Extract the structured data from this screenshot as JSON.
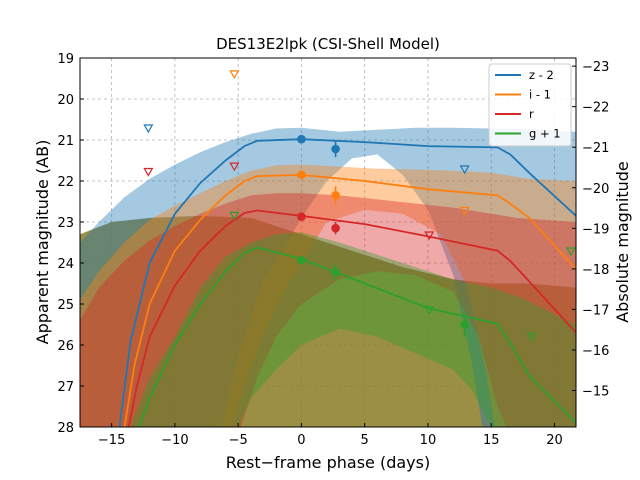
{
  "chart_data": {
    "type": "line",
    "title": "DES13E2lpk (CSI-Shell Model)",
    "xlabel": "Rest−frame phase (days)",
    "ylabel": "Apparent magnitude (AB)",
    "ylabel_right": "Absolute magnitude",
    "xlim": [
      -17.5,
      21.7
    ],
    "ylim": [
      28,
      19
    ],
    "ylim_right": [
      -14.1,
      -23.2
    ],
    "x_ticks": [
      -15,
      -10,
      -5,
      0,
      5,
      10,
      15,
      20
    ],
    "x_tick_labels": [
      "−15",
      "−10",
      "−5",
      "0",
      "5",
      "10",
      "15",
      "20"
    ],
    "y_ticks": [
      19,
      20,
      21,
      22,
      23,
      24,
      25,
      26,
      27,
      28
    ],
    "y_tick_labels": [
      "19",
      "20",
      "21",
      "22",
      "23",
      "24",
      "25",
      "26",
      "27",
      "28"
    ],
    "y_right_ticks": [
      -23,
      -22,
      -21,
      -20,
      -19,
      -18,
      -17,
      -16,
      -15
    ],
    "y_right_tick_labels": [
      "−23",
      "−22",
      "−21",
      "−20",
      "−19",
      "−18",
      "−17",
      "−16",
      "−15"
    ],
    "grid": true,
    "legend_position": "top-right",
    "series": [
      {
        "name": "z - 2",
        "color": "#1f77b4",
        "model": [
          [
            -14.8,
            29
          ],
          [
            -13.5,
            25.9
          ],
          [
            -12,
            24.0
          ],
          [
            -10,
            22.8
          ],
          [
            -8,
            22.05
          ],
          [
            -6,
            21.5
          ],
          [
            -4.5,
            21.15
          ],
          [
            -3.5,
            21.02
          ],
          [
            0,
            20.98
          ],
          [
            5,
            21.05
          ],
          [
            10,
            21.15
          ],
          [
            15.5,
            21.18
          ],
          [
            16.5,
            21.35
          ],
          [
            18,
            21.8
          ],
          [
            21.7,
            22.85
          ]
        ],
        "band_upper": [
          [
            -17.5,
            23.5
          ],
          [
            -16,
            23.0
          ],
          [
            -14,
            22.4
          ],
          [
            -12,
            21.95
          ],
          [
            -10,
            21.6
          ],
          [
            -8,
            21.3
          ],
          [
            -6,
            21.05
          ],
          [
            -4,
            20.85
          ],
          [
            -2,
            20.72
          ],
          [
            0,
            20.7
          ],
          [
            3,
            20.8
          ],
          [
            6,
            20.75
          ],
          [
            9,
            20.7
          ],
          [
            12,
            20.7
          ],
          [
            15,
            20.72
          ],
          [
            17,
            20.72
          ],
          [
            21.7,
            20.8
          ]
        ],
        "band_lower": [
          [
            -17.5,
            28
          ],
          [
            -6.3,
            28
          ],
          [
            -5,
            26.3
          ],
          [
            -3,
            24.4
          ],
          [
            -1.5,
            23.7
          ],
          [
            0,
            22.9
          ],
          [
            2,
            22.0
          ],
          [
            4,
            21.45
          ],
          [
            6,
            21.35
          ],
          [
            8,
            21.85
          ],
          [
            10,
            22.7
          ],
          [
            12,
            24.3
          ],
          [
            13.5,
            26.5
          ],
          [
            14.3,
            28
          ],
          [
            21.7,
            28
          ]
        ],
        "points": [
          {
            "x": 0,
            "y": 20.98,
            "err": 0.08
          },
          {
            "x": 2.7,
            "y": 21.22,
            "err": 0.2
          }
        ],
        "upper_limits": [
          {
            "x": -12.1,
            "y": 20.72
          },
          {
            "x": 12.9,
            "y": 21.72
          }
        ]
      },
      {
        "name": "i - 1",
        "color": "#ff7f0e",
        "model": [
          [
            -14.5,
            29
          ],
          [
            -13.2,
            26.5
          ],
          [
            -12,
            25.0
          ],
          [
            -10,
            23.7
          ],
          [
            -8,
            22.95
          ],
          [
            -6,
            22.35
          ],
          [
            -4.5,
            22.0
          ],
          [
            -3.5,
            21.88
          ],
          [
            0,
            21.85
          ],
          [
            5,
            22.0
          ],
          [
            10,
            22.2
          ],
          [
            15.5,
            22.35
          ],
          [
            16.5,
            22.55
          ],
          [
            18,
            22.9
          ],
          [
            21.7,
            24.15
          ]
        ],
        "band_upper": [
          [
            -17.5,
            24.9
          ],
          [
            -16,
            24.2
          ],
          [
            -14,
            23.5
          ],
          [
            -12,
            22.95
          ],
          [
            -10,
            22.6
          ],
          [
            -8,
            22.3
          ],
          [
            -6,
            22.0
          ],
          [
            -4,
            21.75
          ],
          [
            -2,
            21.62
          ],
          [
            0,
            21.6
          ],
          [
            3,
            21.65
          ],
          [
            6,
            21.7
          ],
          [
            9,
            21.72
          ],
          [
            12,
            21.75
          ],
          [
            15,
            21.8
          ],
          [
            18,
            21.95
          ],
          [
            21.7,
            22.0
          ]
        ],
        "band_lower": [
          [
            -17.5,
            28
          ],
          [
            -5.5,
            28
          ],
          [
            -4,
            26.5
          ],
          [
            -2,
            25.0
          ],
          [
            0,
            24.0
          ],
          [
            2,
            23.0
          ],
          [
            5,
            22.7
          ],
          [
            8,
            22.8
          ],
          [
            11,
            23.3
          ],
          [
            13,
            24.5
          ],
          [
            14.5,
            26.5
          ],
          [
            15.3,
            28
          ],
          [
            21.7,
            28
          ]
        ],
        "points": [
          {
            "x": 0,
            "y": 21.85,
            "err": 0.08
          },
          {
            "x": 2.7,
            "y": 22.35,
            "err": 0.22
          }
        ],
        "upper_limits": [
          {
            "x": -5.3,
            "y": 19.4
          },
          {
            "x": 12.9,
            "y": 22.73
          }
        ]
      },
      {
        "name": "r",
        "color": "#d62728",
        "model": [
          [
            -14.3,
            29
          ],
          [
            -13.0,
            27.0
          ],
          [
            -12,
            25.8
          ],
          [
            -10,
            24.55
          ],
          [
            -8,
            23.7
          ],
          [
            -6,
            23.1
          ],
          [
            -4.5,
            22.78
          ],
          [
            -3.5,
            22.72
          ],
          [
            0,
            22.85
          ],
          [
            5,
            23.05
          ],
          [
            10,
            23.35
          ],
          [
            15.5,
            23.7
          ],
          [
            16.5,
            23.95
          ],
          [
            18,
            24.45
          ],
          [
            21.7,
            25.7
          ]
        ],
        "band_upper": [
          [
            -17.5,
            25.4
          ],
          [
            -16,
            24.6
          ],
          [
            -14,
            23.95
          ],
          [
            -12,
            23.45
          ],
          [
            -10,
            23.1
          ],
          [
            -8,
            22.8
          ],
          [
            -6,
            22.55
          ],
          [
            -4,
            22.35
          ],
          [
            -2,
            22.3
          ],
          [
            0,
            22.3
          ],
          [
            3,
            22.35
          ],
          [
            6,
            22.45
          ],
          [
            9,
            22.55
          ],
          [
            12,
            22.65
          ],
          [
            15,
            22.8
          ],
          [
            17,
            22.9
          ],
          [
            21.7,
            23.0
          ]
        ],
        "band_lower": [
          [
            -17.5,
            28
          ],
          [
            -4.8,
            28
          ],
          [
            -3.5,
            26.8
          ],
          [
            -2,
            25.8
          ],
          [
            0,
            25.0
          ],
          [
            3,
            24.4
          ],
          [
            6,
            24.2
          ],
          [
            9,
            24.3
          ],
          [
            12,
            24.7
          ],
          [
            14,
            25.8
          ],
          [
            15.5,
            27.5
          ],
          [
            16.2,
            28
          ],
          [
            21.7,
            28
          ]
        ],
        "points": [
          {
            "x": 0,
            "y": 22.87,
            "err": 0.08
          },
          {
            "x": 2.7,
            "y": 23.15,
            "err": 0.15
          }
        ],
        "upper_limits": [
          {
            "x": -12.1,
            "y": 21.78
          },
          {
            "x": -5.3,
            "y": 21.65
          },
          {
            "x": 10.1,
            "y": 23.33
          }
        ]
      },
      {
        "name": "g + 1",
        "color": "#2ca02c",
        "model": [
          [
            -14.6,
            29
          ],
          [
            -13.2,
            28.3
          ],
          [
            -12,
            27.3
          ],
          [
            -10,
            26.0
          ],
          [
            -8,
            25.0
          ],
          [
            -6,
            24.2
          ],
          [
            -4.5,
            23.75
          ],
          [
            -3.5,
            23.62
          ],
          [
            0,
            23.9
          ],
          [
            5,
            24.5
          ],
          [
            10,
            25.1
          ],
          [
            15.5,
            25.48
          ],
          [
            16.5,
            25.95
          ],
          [
            18,
            26.75
          ],
          [
            21.7,
            27.9
          ]
        ],
        "band_upper": [
          [
            -17.5,
            28
          ],
          [
            -13.5,
            28
          ],
          [
            -12,
            26.8
          ],
          [
            -10,
            25.8
          ],
          [
            -8,
            24.6
          ],
          [
            -6,
            23.85
          ],
          [
            -4,
            23.5
          ],
          [
            -2,
            23.3
          ],
          [
            0,
            23.25
          ],
          [
            3,
            23.5
          ],
          [
            6,
            23.8
          ],
          [
            9,
            24.1
          ],
          [
            12,
            24.4
          ],
          [
            15,
            24.6
          ],
          [
            17,
            24.8
          ],
          [
            21.7,
            25.5
          ]
        ],
        "band_lower": [
          [
            -17.5,
            28
          ],
          [
            -5.0,
            28
          ],
          [
            -4,
            27.3
          ],
          [
            -2,
            26.6
          ],
          [
            0,
            26.0
          ],
          [
            3,
            25.6
          ],
          [
            6,
            25.8
          ],
          [
            9,
            26.2
          ],
          [
            12,
            26.6
          ],
          [
            13.5,
            27.1
          ],
          [
            15,
            28
          ],
          [
            21.7,
            28
          ]
        ],
        "points": [
          {
            "x": 0,
            "y": 23.93,
            "err": 0.08
          },
          {
            "x": 2.7,
            "y": 24.22,
            "err": 0.2
          },
          {
            "x": 12.9,
            "y": 25.5,
            "err": 0.3
          }
        ],
        "upper_limits": [
          {
            "x": -5.3,
            "y": 22.85
          },
          {
            "x": 10.1,
            "y": 25.15
          },
          {
            "x": 18.2,
            "y": 25.8
          },
          {
            "x": 21.3,
            "y": 23.72
          }
        ]
      }
    ],
    "model_band_shared": {
      "upper": [
        [
          -17.5,
          23.3
        ],
        [
          -15,
          23.0
        ],
        [
          -12,
          22.9
        ],
        [
          -8,
          22.85
        ],
        [
          -4,
          22.9
        ],
        [
          0,
          23.3
        ],
        [
          4,
          23.7
        ],
        [
          8,
          24.1
        ],
        [
          12,
          24.4
        ],
        [
          15,
          24.5
        ],
        [
          18,
          24.5
        ],
        [
          21.7,
          24.6
        ]
      ],
      "lower": [
        [
          -17.5,
          28
        ],
        [
          21.7,
          28
        ]
      ]
    }
  }
}
